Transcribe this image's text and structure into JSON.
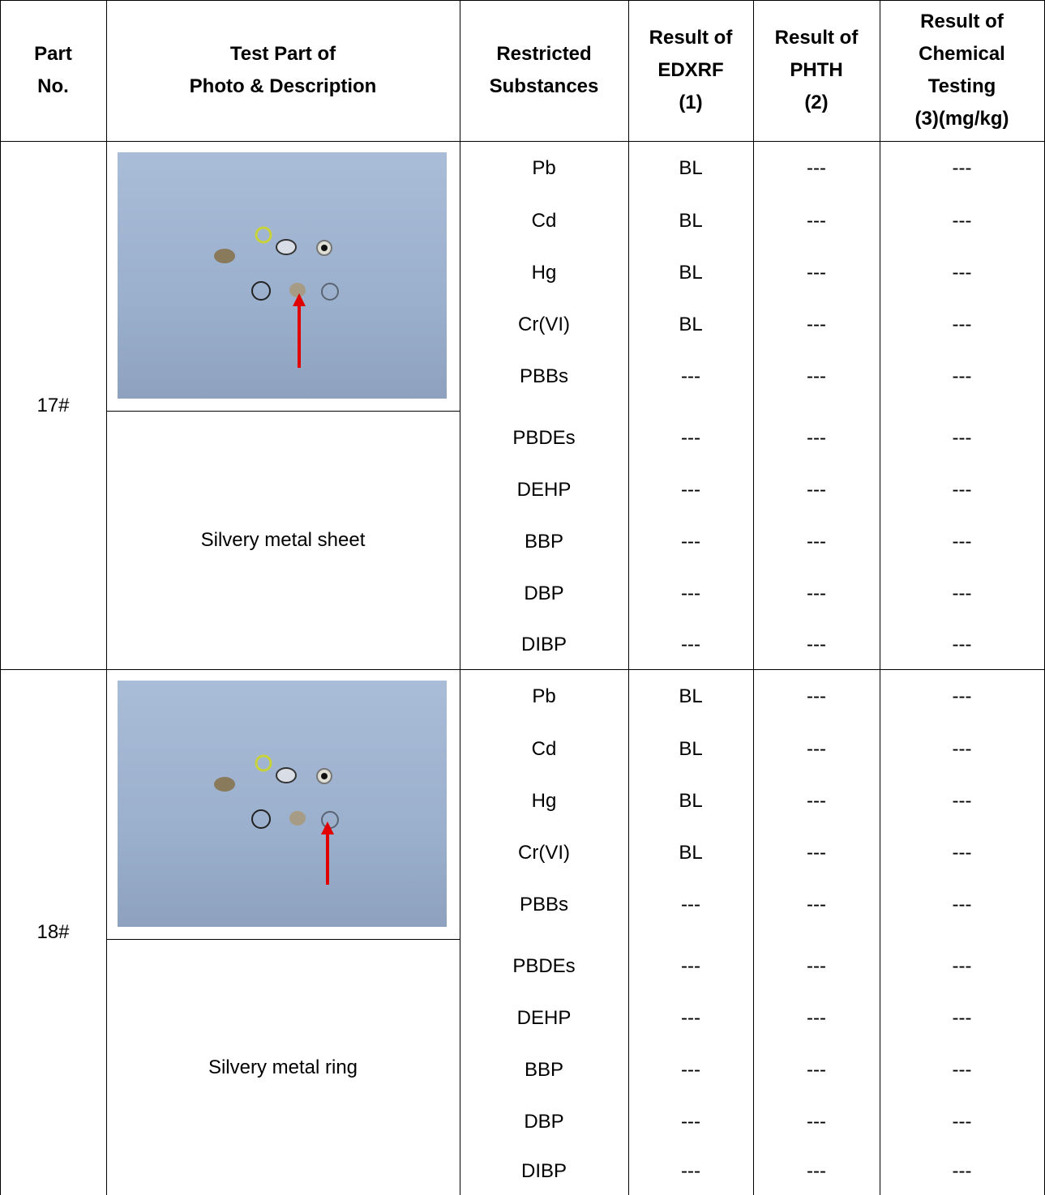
{
  "header": {
    "part_no": "Part\nNo.",
    "test_part": "Test Part of\nPhoto & Description",
    "restricted": "Restricted\nSubstances",
    "edxrf": "Result of\nEDXRF\n(1)",
    "phth": "Result of\nPHTH\n(2)",
    "chemical": "Result of\nChemical\nTesting\n(3)(mg/kg)"
  },
  "parts": [
    {
      "part_no": "17#",
      "description": "Silvery metal sheet",
      "rows": [
        {
          "substance": "Pb",
          "edxrf": "BL",
          "phth": "---",
          "chemical": "---"
        },
        {
          "substance": "Cd",
          "edxrf": "BL",
          "phth": "---",
          "chemical": "---"
        },
        {
          "substance": "Hg",
          "edxrf": "BL",
          "phth": "---",
          "chemical": "---"
        },
        {
          "substance": "Cr(VI)",
          "edxrf": "BL",
          "phth": "---",
          "chemical": "---"
        },
        {
          "substance": "PBBs",
          "edxrf": "---",
          "phth": "---",
          "chemical": "---"
        },
        {
          "substance": "PBDEs",
          "edxrf": "---",
          "phth": "---",
          "chemical": "---"
        },
        {
          "substance": "DEHP",
          "edxrf": "---",
          "phth": "---",
          "chemical": "---"
        },
        {
          "substance": "BBP",
          "edxrf": "---",
          "phth": "---",
          "chemical": "---"
        },
        {
          "substance": "DBP",
          "edxrf": "---",
          "phth": "---",
          "chemical": "---"
        },
        {
          "substance": "DIBP",
          "edxrf": "---",
          "phth": "---",
          "chemical": "---"
        }
      ]
    },
    {
      "part_no": "18#",
      "description": "Silvery metal ring",
      "rows": [
        {
          "substance": "Pb",
          "edxrf": "BL",
          "phth": "---",
          "chemical": "---"
        },
        {
          "substance": "Cd",
          "edxrf": "BL",
          "phth": "---",
          "chemical": "---"
        },
        {
          "substance": "Hg",
          "edxrf": "BL",
          "phth": "---",
          "chemical": "---"
        },
        {
          "substance": "Cr(VI)",
          "edxrf": "BL",
          "phth": "---",
          "chemical": "---"
        },
        {
          "substance": "PBBs",
          "edxrf": "---",
          "phth": "---",
          "chemical": "---"
        },
        {
          "substance": "PBDEs",
          "edxrf": "---",
          "phth": "---",
          "chemical": "---"
        },
        {
          "substance": "DEHP",
          "edxrf": "---",
          "phth": "---",
          "chemical": "---"
        },
        {
          "substance": "BBP",
          "edxrf": "---",
          "phth": "---",
          "chemical": "---"
        },
        {
          "substance": "DBP",
          "edxrf": "---",
          "phth": "---",
          "chemical": "---"
        },
        {
          "substance": "DIBP",
          "edxrf": "---",
          "phth": "---",
          "chemical": "---"
        }
      ]
    }
  ],
  "colors": {
    "photo_background": "#9fb3cf",
    "arrow": "#e00000"
  }
}
